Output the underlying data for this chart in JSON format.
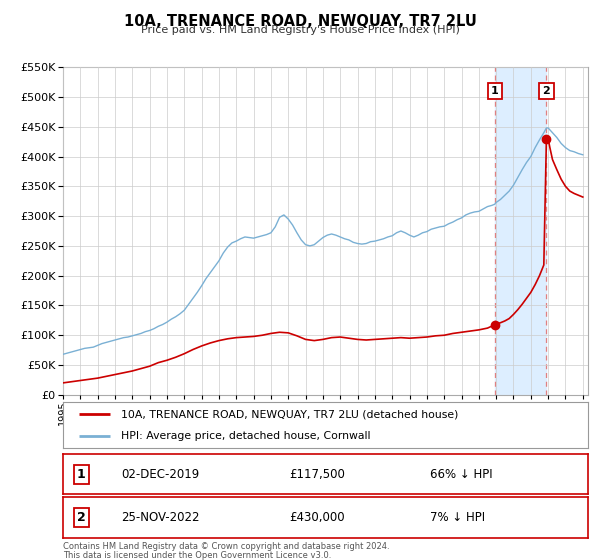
{
  "title": "10A, TRENANCE ROAD, NEWQUAY, TR7 2LU",
  "subtitle": "Price paid vs. HM Land Registry's House Price Index (HPI)",
  "legend_line1": "10A, TRENANCE ROAD, NEWQUAY, TR7 2LU (detached house)",
  "legend_line2": "HPI: Average price, detached house, Cornwall",
  "footer_line1": "Contains HM Land Registry data © Crown copyright and database right 2024.",
  "footer_line2": "This data is licensed under the Open Government Licence v3.0.",
  "sale1_date": "02-DEC-2019",
  "sale1_price": "£117,500",
  "sale1_hpi": "66% ↓ HPI",
  "sale2_date": "25-NOV-2022",
  "sale2_price": "£430,000",
  "sale2_hpi": "7% ↓ HPI",
  "property_color": "#cc0000",
  "hpi_color": "#7ab0d4",
  "shaded_color": "#ddeeff",
  "dashed_line_color": "#e08080",
  "sale1_year": 2019.92,
  "sale2_year": 2022.9,
  "sale1_price_val": 117500,
  "sale2_price_val": 430000,
  "ylim": [
    0,
    550000
  ],
  "xlim_start": 1995,
  "xlim_end": 2025.3,
  "background_color": "#ffffff",
  "grid_color": "#cccccc",
  "hpi_data": [
    [
      1995.0,
      68000
    ],
    [
      1995.25,
      70000
    ],
    [
      1995.5,
      72000
    ],
    [
      1995.75,
      74000
    ],
    [
      1996.0,
      76000
    ],
    [
      1996.25,
      78000
    ],
    [
      1996.5,
      79000
    ],
    [
      1996.75,
      80000
    ],
    [
      1997.0,
      83000
    ],
    [
      1997.25,
      86000
    ],
    [
      1997.5,
      88000
    ],
    [
      1997.75,
      90000
    ],
    [
      1998.0,
      92000
    ],
    [
      1998.25,
      94000
    ],
    [
      1998.5,
      96000
    ],
    [
      1998.75,
      97000
    ],
    [
      1999.0,
      99000
    ],
    [
      1999.25,
      101000
    ],
    [
      1999.5,
      103000
    ],
    [
      1999.75,
      106000
    ],
    [
      2000.0,
      108000
    ],
    [
      2000.25,
      111000
    ],
    [
      2000.5,
      115000
    ],
    [
      2000.75,
      118000
    ],
    [
      2001.0,
      122000
    ],
    [
      2001.25,
      127000
    ],
    [
      2001.5,
      131000
    ],
    [
      2001.75,
      136000
    ],
    [
      2002.0,
      142000
    ],
    [
      2002.25,
      152000
    ],
    [
      2002.5,
      162000
    ],
    [
      2002.75,
      172000
    ],
    [
      2003.0,
      183000
    ],
    [
      2003.25,
      195000
    ],
    [
      2003.5,
      205000
    ],
    [
      2003.75,
      215000
    ],
    [
      2004.0,
      225000
    ],
    [
      2004.25,
      238000
    ],
    [
      2004.5,
      248000
    ],
    [
      2004.75,
      255000
    ],
    [
      2005.0,
      258000
    ],
    [
      2005.25,
      262000
    ],
    [
      2005.5,
      265000
    ],
    [
      2005.75,
      264000
    ],
    [
      2006.0,
      263000
    ],
    [
      2006.25,
      265000
    ],
    [
      2006.5,
      267000
    ],
    [
      2006.75,
      269000
    ],
    [
      2007.0,
      272000
    ],
    [
      2007.25,
      282000
    ],
    [
      2007.5,
      298000
    ],
    [
      2007.75,
      302000
    ],
    [
      2008.0,
      295000
    ],
    [
      2008.25,
      285000
    ],
    [
      2008.5,
      272000
    ],
    [
      2008.75,
      260000
    ],
    [
      2009.0,
      252000
    ],
    [
      2009.25,
      250000
    ],
    [
      2009.5,
      252000
    ],
    [
      2009.75,
      258000
    ],
    [
      2010.0,
      264000
    ],
    [
      2010.25,
      268000
    ],
    [
      2010.5,
      270000
    ],
    [
      2010.75,
      268000
    ],
    [
      2011.0,
      265000
    ],
    [
      2011.25,
      262000
    ],
    [
      2011.5,
      260000
    ],
    [
      2011.75,
      256000
    ],
    [
      2012.0,
      254000
    ],
    [
      2012.25,
      253000
    ],
    [
      2012.5,
      254000
    ],
    [
      2012.75,
      257000
    ],
    [
      2013.0,
      258000
    ],
    [
      2013.25,
      260000
    ],
    [
      2013.5,
      262000
    ],
    [
      2013.75,
      265000
    ],
    [
      2014.0,
      267000
    ],
    [
      2014.25,
      272000
    ],
    [
      2014.5,
      275000
    ],
    [
      2014.75,
      272000
    ],
    [
      2015.0,
      268000
    ],
    [
      2015.25,
      265000
    ],
    [
      2015.5,
      268000
    ],
    [
      2015.75,
      272000
    ],
    [
      2016.0,
      274000
    ],
    [
      2016.25,
      278000
    ],
    [
      2016.5,
      280000
    ],
    [
      2016.75,
      282000
    ],
    [
      2017.0,
      283000
    ],
    [
      2017.25,
      287000
    ],
    [
      2017.5,
      290000
    ],
    [
      2017.75,
      294000
    ],
    [
      2018.0,
      297000
    ],
    [
      2018.25,
      302000
    ],
    [
      2018.5,
      305000
    ],
    [
      2018.75,
      307000
    ],
    [
      2019.0,
      308000
    ],
    [
      2019.25,
      312000
    ],
    [
      2019.5,
      316000
    ],
    [
      2019.75,
      318000
    ],
    [
      2019.92,
      320000
    ],
    [
      2020.0,
      323000
    ],
    [
      2020.25,
      328000
    ],
    [
      2020.5,
      335000
    ],
    [
      2020.75,
      342000
    ],
    [
      2021.0,
      352000
    ],
    [
      2021.25,
      365000
    ],
    [
      2021.5,
      378000
    ],
    [
      2021.75,
      390000
    ],
    [
      2022.0,
      400000
    ],
    [
      2022.25,
      415000
    ],
    [
      2022.5,
      428000
    ],
    [
      2022.75,
      440000
    ],
    [
      2022.9,
      448000
    ],
    [
      2023.0,
      448000
    ],
    [
      2023.25,
      440000
    ],
    [
      2023.5,
      432000
    ],
    [
      2023.75,
      422000
    ],
    [
      2024.0,
      415000
    ],
    [
      2024.25,
      410000
    ],
    [
      2024.5,
      408000
    ],
    [
      2024.75,
      405000
    ],
    [
      2025.0,
      403000
    ]
  ],
  "property_data": [
    [
      1995.0,
      20000
    ],
    [
      1995.5,
      22000
    ],
    [
      1996.0,
      24000
    ],
    [
      1996.5,
      26000
    ],
    [
      1997.0,
      28000
    ],
    [
      1997.5,
      31000
    ],
    [
      1998.0,
      34000
    ],
    [
      1998.5,
      37000
    ],
    [
      1999.0,
      40000
    ],
    [
      1999.5,
      44000
    ],
    [
      2000.0,
      48000
    ],
    [
      2000.5,
      54000
    ],
    [
      2001.0,
      58000
    ],
    [
      2001.5,
      63000
    ],
    [
      2002.0,
      69000
    ],
    [
      2002.5,
      76000
    ],
    [
      2003.0,
      82000
    ],
    [
      2003.5,
      87000
    ],
    [
      2004.0,
      91000
    ],
    [
      2004.5,
      94000
    ],
    [
      2005.0,
      96000
    ],
    [
      2005.5,
      97000
    ],
    [
      2006.0,
      98000
    ],
    [
      2006.5,
      100000
    ],
    [
      2007.0,
      103000
    ],
    [
      2007.5,
      105000
    ],
    [
      2008.0,
      104000
    ],
    [
      2008.5,
      99000
    ],
    [
      2009.0,
      93000
    ],
    [
      2009.5,
      91000
    ],
    [
      2010.0,
      93000
    ],
    [
      2010.5,
      96000
    ],
    [
      2011.0,
      97000
    ],
    [
      2011.5,
      95000
    ],
    [
      2012.0,
      93000
    ],
    [
      2012.5,
      92000
    ],
    [
      2013.0,
      93000
    ],
    [
      2013.5,
      94000
    ],
    [
      2014.0,
      95000
    ],
    [
      2014.5,
      96000
    ],
    [
      2015.0,
      95000
    ],
    [
      2015.5,
      96000
    ],
    [
      2016.0,
      97000
    ],
    [
      2016.5,
      99000
    ],
    [
      2017.0,
      100000
    ],
    [
      2017.5,
      103000
    ],
    [
      2018.0,
      105000
    ],
    [
      2018.5,
      107000
    ],
    [
      2019.0,
      109000
    ],
    [
      2019.5,
      112000
    ],
    [
      2019.92,
      117500
    ],
    [
      2020.0,
      119000
    ],
    [
      2020.25,
      121000
    ],
    [
      2020.5,
      124000
    ],
    [
      2020.75,
      128000
    ],
    [
      2021.0,
      135000
    ],
    [
      2021.25,
      143000
    ],
    [
      2021.5,
      152000
    ],
    [
      2021.75,
      162000
    ],
    [
      2022.0,
      172000
    ],
    [
      2022.25,
      185000
    ],
    [
      2022.5,
      200000
    ],
    [
      2022.75,
      218000
    ],
    [
      2022.9,
      430000
    ],
    [
      2023.0,
      430000
    ],
    [
      2023.1,
      415000
    ],
    [
      2023.25,
      395000
    ],
    [
      2023.5,
      378000
    ],
    [
      2023.75,
      362000
    ],
    [
      2024.0,
      350000
    ],
    [
      2024.25,
      342000
    ],
    [
      2024.5,
      338000
    ],
    [
      2024.75,
      335000
    ],
    [
      2025.0,
      332000
    ]
  ]
}
